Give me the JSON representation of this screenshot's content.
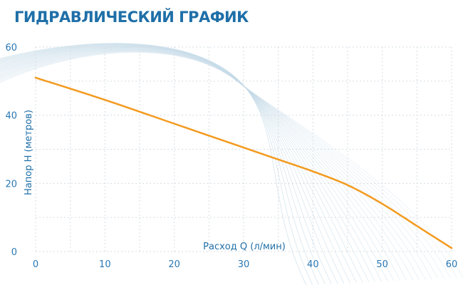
{
  "title": "ГИДРАВЛИЧЕСКИЙ ГРАФИК",
  "colors": {
    "line": "#f39a1e",
    "grid": "#d7dde3",
    "text": "#1f6fa8",
    "swoosh": "#c6dbe8"
  },
  "chart_data": {
    "type": "line",
    "title": "ГИДРАВЛИЧЕСКИЙ ГРАФИК",
    "xlabel": "Расход Q (л/мин)",
    "ylabel": "Напор H (метров)",
    "xlim": [
      0,
      60
    ],
    "ylim": [
      0,
      60
    ],
    "x_ticks": [
      0,
      10,
      20,
      30,
      40,
      50,
      60
    ],
    "y_ticks": [
      0,
      20,
      40,
      60
    ],
    "grid": true,
    "legend": "none",
    "series": [
      {
        "x": [
          0,
          10,
          20,
          30,
          35,
          40,
          45,
          50,
          55,
          60
        ],
        "y": [
          51,
          44.5,
          37.5,
          30.5,
          27,
          23.5,
          19.5,
          14,
          7.5,
          1
        ]
      }
    ]
  }
}
